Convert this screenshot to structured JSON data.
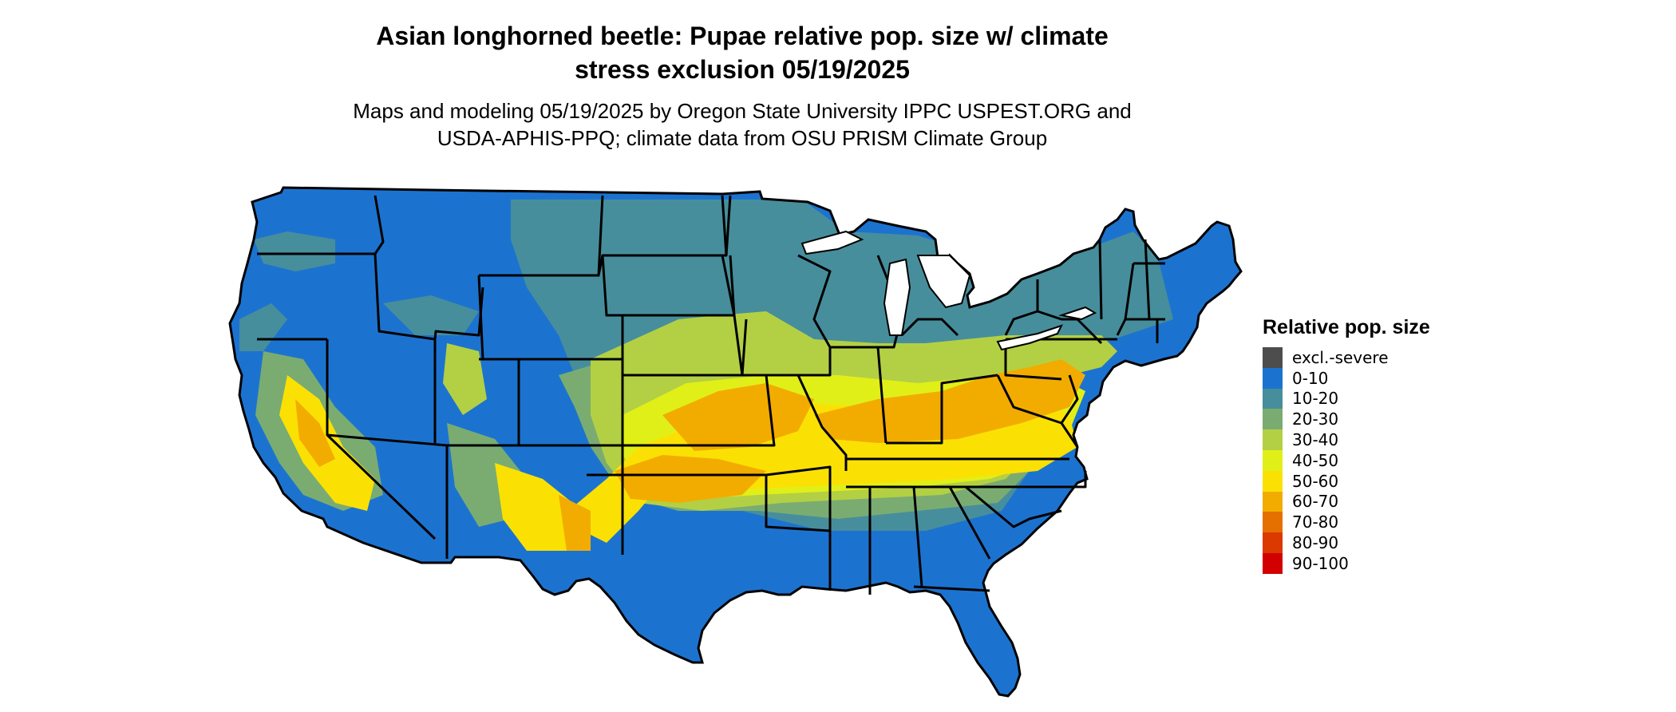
{
  "title_line1": "Asian longhorned beetle: Pupae relative pop. size w/ climate",
  "title_line2": "stress exclusion 05/19/2025",
  "subtitle_line1": "Maps and modeling 05/19/2025 by Oregon State University IPPC USPEST.ORG and",
  "subtitle_line2": "USDA-APHIS-PPQ; climate data from OSU PRISM Climate Group",
  "legend": {
    "title": "Relative pop. size",
    "items": [
      {
        "label": "excl.-severe",
        "color": "#4d4d4d"
      },
      {
        "label": "0-10",
        "color": "#1c73cf"
      },
      {
        "label": "10-20",
        "color": "#478e9c"
      },
      {
        "label": "20-30",
        "color": "#7aac72"
      },
      {
        "label": "30-40",
        "color": "#b3d044"
      },
      {
        "label": "40-50",
        "color": "#e1ef18"
      },
      {
        "label": "50-60",
        "color": "#fbe103"
      },
      {
        "label": "60-70",
        "color": "#f2ac00"
      },
      {
        "label": "70-80",
        "color": "#e57000"
      },
      {
        "label": "80-90",
        "color": "#dc3900"
      },
      {
        "label": "90-100",
        "color": "#d20000"
      }
    ]
  }
}
